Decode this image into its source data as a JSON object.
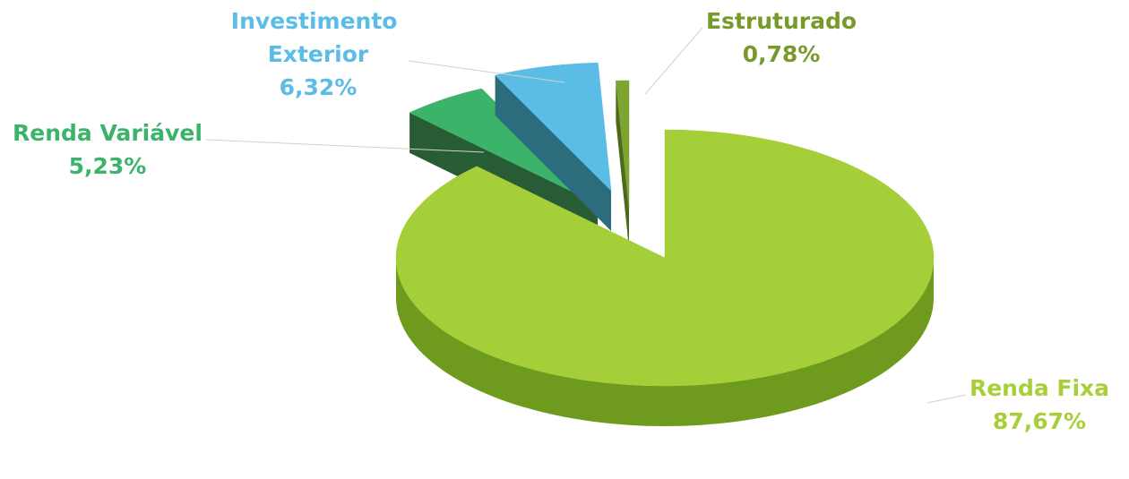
{
  "chart_data": {
    "type": "pie",
    "categories": [
      "Renda Fixa",
      "Renda Variável",
      "Investimento Exterior",
      "Estruturado"
    ],
    "values": [
      87.67,
      5.23,
      6.32,
      0.78
    ],
    "value_labels": [
      "87,67%",
      "5,23%",
      "6,32%",
      "0,78%"
    ],
    "colors": [
      "#a4cf38",
      "#3cb36b",
      "#5bbde6",
      "#7ea432"
    ]
  }
}
